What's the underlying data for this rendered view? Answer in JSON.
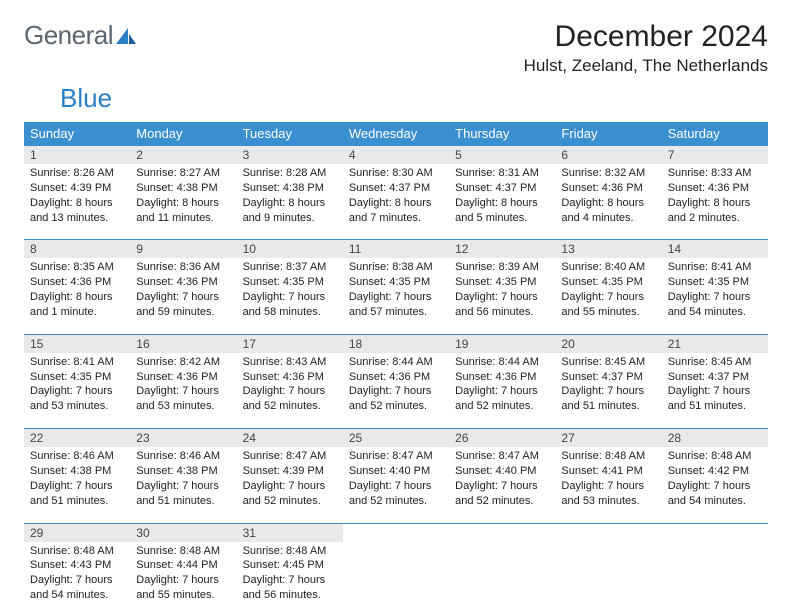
{
  "brand": {
    "word1": "General",
    "word2": "Blue",
    "text_color": "#5b6670",
    "accent_color": "#2a7fc4"
  },
  "title": "December 2024",
  "location": "Hulst, Zeeland, The Netherlands",
  "colors": {
    "header_bg": "#3a8fd0",
    "header_text": "#ffffff",
    "daynum_bg": "#e9e9e9",
    "row_border": "#3a8fd0",
    "body_text": "#222222",
    "background": "#ffffff"
  },
  "weekdays": [
    "Sunday",
    "Monday",
    "Tuesday",
    "Wednesday",
    "Thursday",
    "Friday",
    "Saturday"
  ],
  "weeks": [
    [
      {
        "n": "1",
        "sunrise": "Sunrise: 8:26 AM",
        "sunset": "Sunset: 4:39 PM",
        "daylight": "Daylight: 8 hours and 13 minutes."
      },
      {
        "n": "2",
        "sunrise": "Sunrise: 8:27 AM",
        "sunset": "Sunset: 4:38 PM",
        "daylight": "Daylight: 8 hours and 11 minutes."
      },
      {
        "n": "3",
        "sunrise": "Sunrise: 8:28 AM",
        "sunset": "Sunset: 4:38 PM",
        "daylight": "Daylight: 8 hours and 9 minutes."
      },
      {
        "n": "4",
        "sunrise": "Sunrise: 8:30 AM",
        "sunset": "Sunset: 4:37 PM",
        "daylight": "Daylight: 8 hours and 7 minutes."
      },
      {
        "n": "5",
        "sunrise": "Sunrise: 8:31 AM",
        "sunset": "Sunset: 4:37 PM",
        "daylight": "Daylight: 8 hours and 5 minutes."
      },
      {
        "n": "6",
        "sunrise": "Sunrise: 8:32 AM",
        "sunset": "Sunset: 4:36 PM",
        "daylight": "Daylight: 8 hours and 4 minutes."
      },
      {
        "n": "7",
        "sunrise": "Sunrise: 8:33 AM",
        "sunset": "Sunset: 4:36 PM",
        "daylight": "Daylight: 8 hours and 2 minutes."
      }
    ],
    [
      {
        "n": "8",
        "sunrise": "Sunrise: 8:35 AM",
        "sunset": "Sunset: 4:36 PM",
        "daylight": "Daylight: 8 hours and 1 minute."
      },
      {
        "n": "9",
        "sunrise": "Sunrise: 8:36 AM",
        "sunset": "Sunset: 4:36 PM",
        "daylight": "Daylight: 7 hours and 59 minutes."
      },
      {
        "n": "10",
        "sunrise": "Sunrise: 8:37 AM",
        "sunset": "Sunset: 4:35 PM",
        "daylight": "Daylight: 7 hours and 58 minutes."
      },
      {
        "n": "11",
        "sunrise": "Sunrise: 8:38 AM",
        "sunset": "Sunset: 4:35 PM",
        "daylight": "Daylight: 7 hours and 57 minutes."
      },
      {
        "n": "12",
        "sunrise": "Sunrise: 8:39 AM",
        "sunset": "Sunset: 4:35 PM",
        "daylight": "Daylight: 7 hours and 56 minutes."
      },
      {
        "n": "13",
        "sunrise": "Sunrise: 8:40 AM",
        "sunset": "Sunset: 4:35 PM",
        "daylight": "Daylight: 7 hours and 55 minutes."
      },
      {
        "n": "14",
        "sunrise": "Sunrise: 8:41 AM",
        "sunset": "Sunset: 4:35 PM",
        "daylight": "Daylight: 7 hours and 54 minutes."
      }
    ],
    [
      {
        "n": "15",
        "sunrise": "Sunrise: 8:41 AM",
        "sunset": "Sunset: 4:35 PM",
        "daylight": "Daylight: 7 hours and 53 minutes."
      },
      {
        "n": "16",
        "sunrise": "Sunrise: 8:42 AM",
        "sunset": "Sunset: 4:36 PM",
        "daylight": "Daylight: 7 hours and 53 minutes."
      },
      {
        "n": "17",
        "sunrise": "Sunrise: 8:43 AM",
        "sunset": "Sunset: 4:36 PM",
        "daylight": "Daylight: 7 hours and 52 minutes."
      },
      {
        "n": "18",
        "sunrise": "Sunrise: 8:44 AM",
        "sunset": "Sunset: 4:36 PM",
        "daylight": "Daylight: 7 hours and 52 minutes."
      },
      {
        "n": "19",
        "sunrise": "Sunrise: 8:44 AM",
        "sunset": "Sunset: 4:36 PM",
        "daylight": "Daylight: 7 hours and 52 minutes."
      },
      {
        "n": "20",
        "sunrise": "Sunrise: 8:45 AM",
        "sunset": "Sunset: 4:37 PM",
        "daylight": "Daylight: 7 hours and 51 minutes."
      },
      {
        "n": "21",
        "sunrise": "Sunrise: 8:45 AM",
        "sunset": "Sunset: 4:37 PM",
        "daylight": "Daylight: 7 hours and 51 minutes."
      }
    ],
    [
      {
        "n": "22",
        "sunrise": "Sunrise: 8:46 AM",
        "sunset": "Sunset: 4:38 PM",
        "daylight": "Daylight: 7 hours and 51 minutes."
      },
      {
        "n": "23",
        "sunrise": "Sunrise: 8:46 AM",
        "sunset": "Sunset: 4:38 PM",
        "daylight": "Daylight: 7 hours and 51 minutes."
      },
      {
        "n": "24",
        "sunrise": "Sunrise: 8:47 AM",
        "sunset": "Sunset: 4:39 PM",
        "daylight": "Daylight: 7 hours and 52 minutes."
      },
      {
        "n": "25",
        "sunrise": "Sunrise: 8:47 AM",
        "sunset": "Sunset: 4:40 PM",
        "daylight": "Daylight: 7 hours and 52 minutes."
      },
      {
        "n": "26",
        "sunrise": "Sunrise: 8:47 AM",
        "sunset": "Sunset: 4:40 PM",
        "daylight": "Daylight: 7 hours and 52 minutes."
      },
      {
        "n": "27",
        "sunrise": "Sunrise: 8:48 AM",
        "sunset": "Sunset: 4:41 PM",
        "daylight": "Daylight: 7 hours and 53 minutes."
      },
      {
        "n": "28",
        "sunrise": "Sunrise: 8:48 AM",
        "sunset": "Sunset: 4:42 PM",
        "daylight": "Daylight: 7 hours and 54 minutes."
      }
    ],
    [
      {
        "n": "29",
        "sunrise": "Sunrise: 8:48 AM",
        "sunset": "Sunset: 4:43 PM",
        "daylight": "Daylight: 7 hours and 54 minutes."
      },
      {
        "n": "30",
        "sunrise": "Sunrise: 8:48 AM",
        "sunset": "Sunset: 4:44 PM",
        "daylight": "Daylight: 7 hours and 55 minutes."
      },
      {
        "n": "31",
        "sunrise": "Sunrise: 8:48 AM",
        "sunset": "Sunset: 4:45 PM",
        "daylight": "Daylight: 7 hours and 56 minutes."
      },
      null,
      null,
      null,
      null
    ]
  ]
}
